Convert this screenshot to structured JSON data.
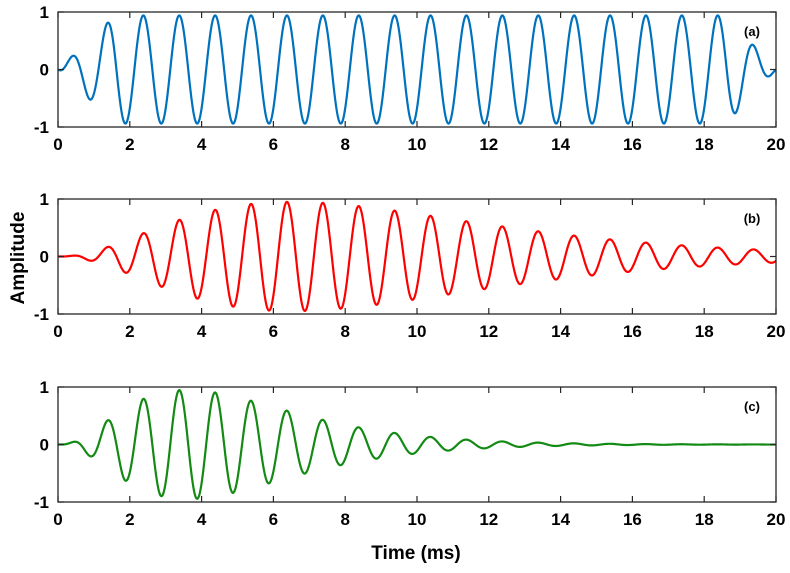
{
  "chart_data": [
    {
      "type": "line",
      "panel_label": "(a)",
      "envelope": "flat",
      "frequency_khz": 1,
      "series": [
        {
          "color": "#0072BD"
        }
      ],
      "xlim": [
        0,
        20
      ],
      "ylim": [
        -1,
        1
      ],
      "xticks": [
        "0",
        "2",
        "4",
        "6",
        "8",
        "10",
        "12",
        "14",
        "16",
        "18",
        "20"
      ],
      "yticks": [
        "-1",
        "0",
        "1"
      ],
      "grid": false
    },
    {
      "type": "line",
      "panel_label": "(b)",
      "envelope": "peak near 6.5 ms, slow decay",
      "frequency_khz": 1,
      "series": [
        {
          "color": "#FF0000"
        }
      ],
      "xlim": [
        0,
        20
      ],
      "ylim": [
        -1,
        1
      ],
      "xticks": [
        "0",
        "2",
        "4",
        "6",
        "8",
        "10",
        "12",
        "14",
        "16",
        "18",
        "20"
      ],
      "yticks": [
        "-1",
        "0",
        "1"
      ],
      "grid": false
    },
    {
      "type": "line",
      "panel_label": "(c)",
      "envelope": "peak near 3.5 ms, fast decay",
      "frequency_khz": 1,
      "series": [
        {
          "color": "#138A13"
        }
      ],
      "xlim": [
        0,
        20
      ],
      "ylim": [
        -1,
        1
      ],
      "xticks": [
        "0",
        "2",
        "4",
        "6",
        "8",
        "10",
        "12",
        "14",
        "16",
        "18",
        "20"
      ],
      "yticks": [
        "-1",
        "0",
        "1"
      ],
      "grid": false
    }
  ],
  "ylabel": "Amplitude",
  "xlabel": "Time (ms)"
}
